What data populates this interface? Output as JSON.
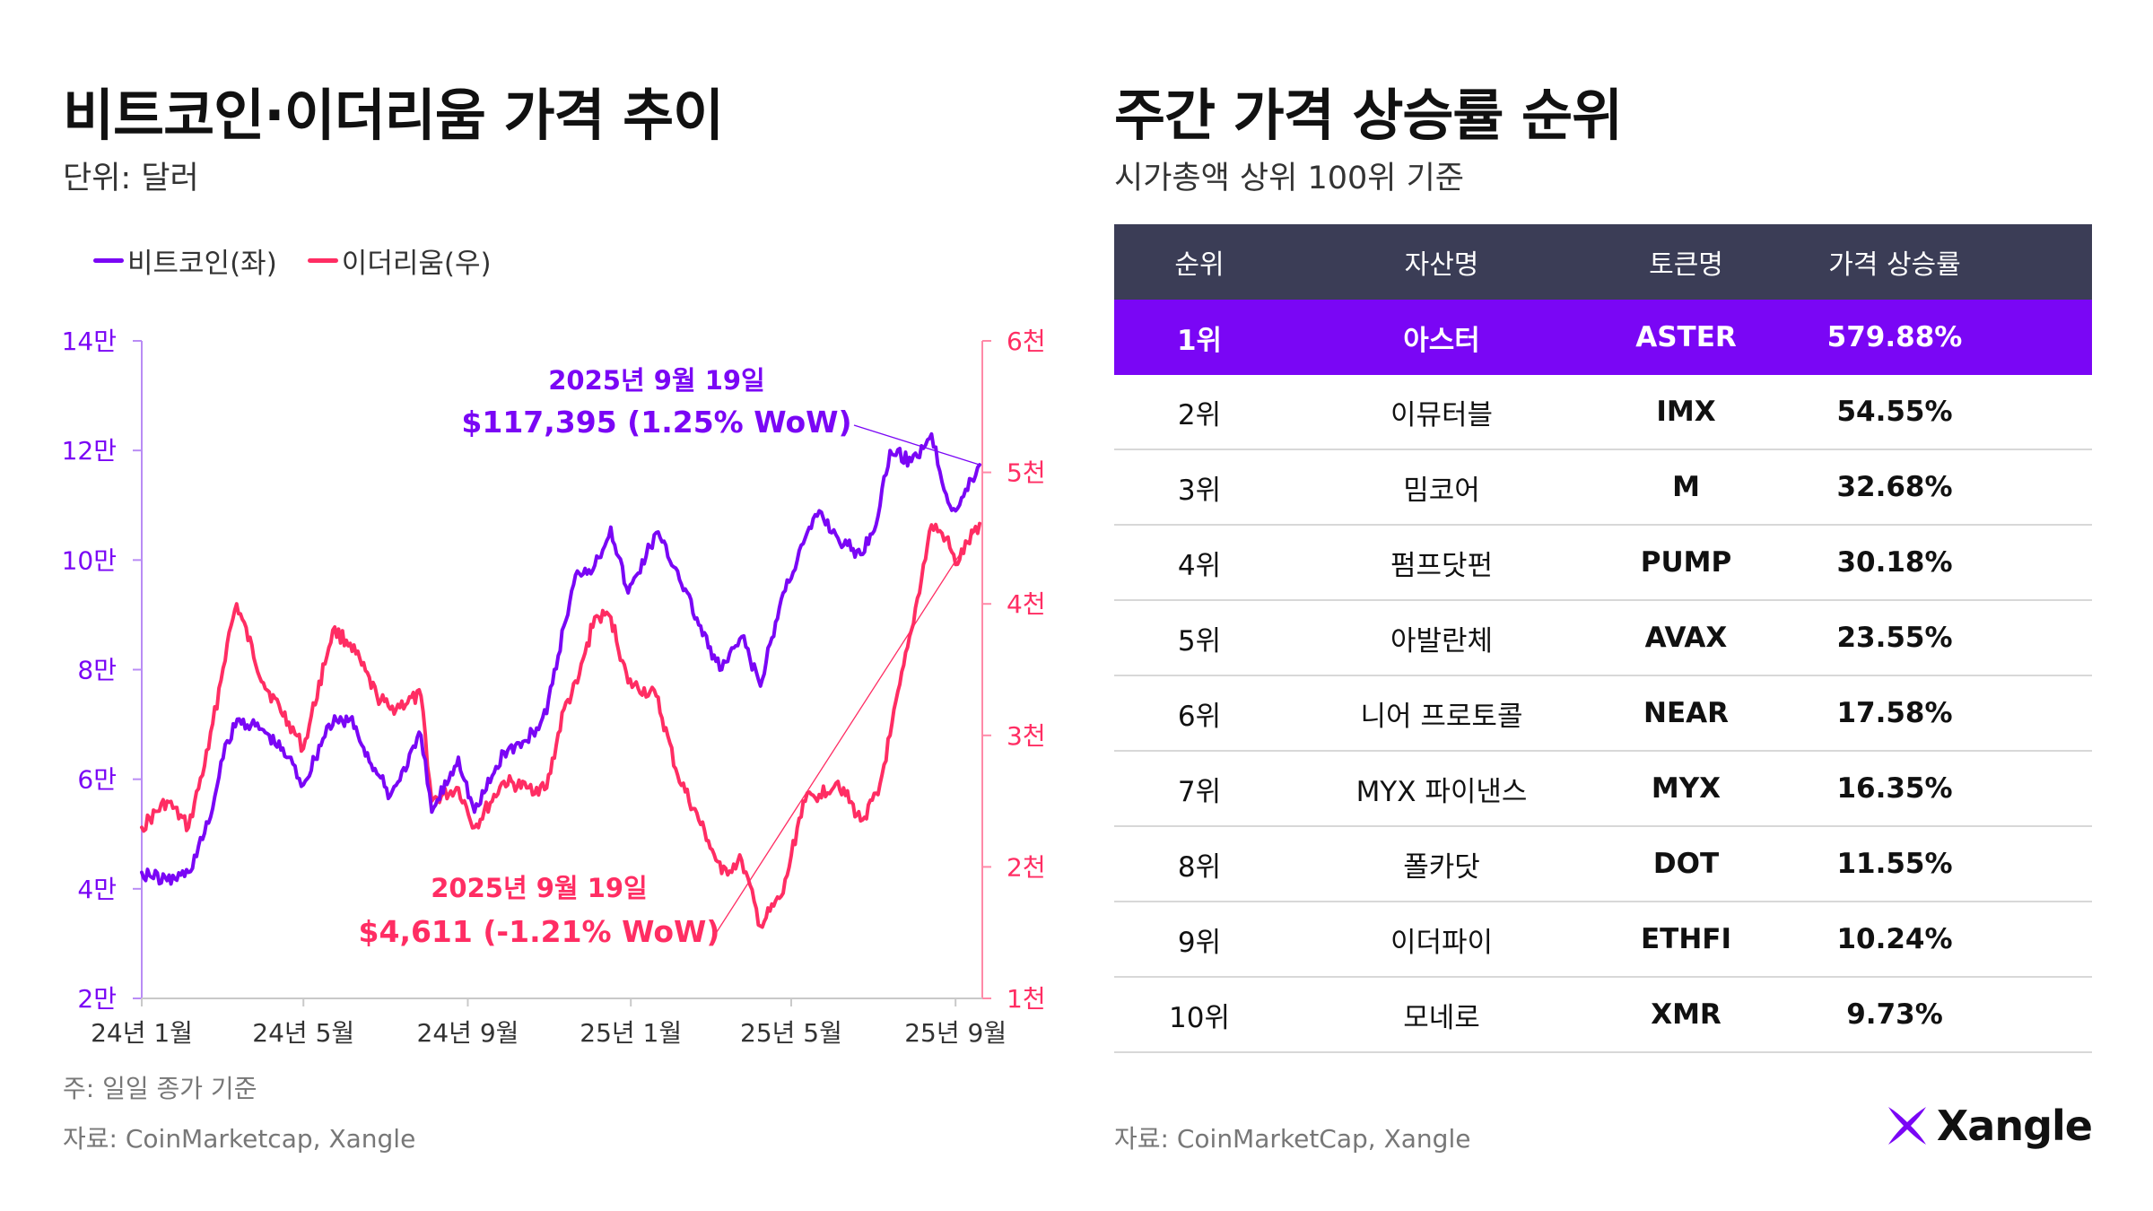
{
  "left": {
    "title": "비트코인·이더리움 가격 추이",
    "unit": "단위: 달러",
    "legend": [
      {
        "label": "비트코인(좌)",
        "color": "#7a06f5"
      },
      {
        "label": "이더리움(우)",
        "color": "#ff2d63"
      }
    ],
    "note": "주: 일일 종가 기준",
    "source": "자료: CoinMarketcap, Xangle"
  },
  "right": {
    "title": "주간 가격 상승률 순위",
    "subtitle": "시가총액 상위 100위 기준",
    "columns": [
      "순위",
      "자산명",
      "토큰명",
      "가격 상승률"
    ],
    "rows": [
      [
        "1위",
        "아스터",
        "ASTER",
        "579.88%"
      ],
      [
        "2위",
        "이뮤터블",
        "IMX",
        "54.55%"
      ],
      [
        "3위",
        "밈코어",
        "M",
        "32.68%"
      ],
      [
        "4위",
        "펌프닷펀",
        "PUMP",
        "30.18%"
      ],
      [
        "5위",
        "아발란체",
        "AVAX",
        "23.55%"
      ],
      [
        "6위",
        "니어 프로토콜",
        "NEAR",
        "17.58%"
      ],
      [
        "7위",
        "MYX 파이낸스",
        "MYX",
        "16.35%"
      ],
      [
        "8위",
        "폴카닷",
        "DOT",
        "11.55%"
      ],
      [
        "9위",
        "이더파이",
        "ETHFI",
        "10.24%"
      ],
      [
        "10위",
        "모네로",
        "XMR",
        "9.73%"
      ]
    ],
    "source": "자료: CoinMarketCap, Xangle"
  },
  "logo": {
    "text": "Xangle",
    "icon": "xangle-x-icon"
  },
  "colors": {
    "btc": "#7a06f5",
    "eth": "#ff2d63",
    "header": "#3b3d56",
    "highlight": "#7a06f5"
  },
  "chart_data": {
    "type": "line",
    "x_ticks": [
      "24년 1월",
      "24년 5월",
      "24년 9월",
      "25년 1월",
      "25년 5월",
      "25년 9월"
    ],
    "y_left": {
      "range": [
        20000,
        140000
      ],
      "ticks": [
        "2만",
        "4만",
        "6만",
        "8만",
        "10만",
        "12만",
        "14만"
      ]
    },
    "y_right": {
      "range": [
        1000,
        6000
      ],
      "ticks": [
        "1천",
        "2천",
        "3천",
        "4천",
        "5천",
        "6천"
      ]
    },
    "series": [
      {
        "name": "비트코인(좌)",
        "axis": "left",
        "x": [
          "2024-01-01",
          "2024-01-20",
          "2024-02-05",
          "2024-02-20",
          "2024-03-05",
          "2024-03-14",
          "2024-04-01",
          "2024-04-20",
          "2024-05-01",
          "2024-05-20",
          "2024-06-05",
          "2024-06-25",
          "2024-07-05",
          "2024-07-28",
          "2024-08-05",
          "2024-08-25",
          "2024-09-06",
          "2024-09-28",
          "2024-10-15",
          "2024-10-30",
          "2024-11-12",
          "2024-11-22",
          "2024-12-05",
          "2024-12-17",
          "2024-12-30",
          "2025-01-20",
          "2025-02-05",
          "2025-02-28",
          "2025-03-10",
          "2025-03-25",
          "2025-04-08",
          "2025-04-25",
          "2025-05-10",
          "2025-05-22",
          "2025-06-05",
          "2025-06-22",
          "2025-07-05",
          "2025-07-14",
          "2025-07-30",
          "2025-08-14",
          "2025-08-25",
          "2025-09-01",
          "2025-09-19"
        ],
        "values": [
          43000,
          41500,
          43000,
          52000,
          67000,
          71000,
          69000,
          64000,
          59000,
          70000,
          71000,
          61000,
          57000,
          68000,
          54000,
          64000,
          54000,
          65000,
          67000,
          72000,
          88000,
          98000,
          99000,
          106000,
          94000,
          105000,
          98000,
          84000,
          80000,
          86000,
          77000,
          94000,
          103000,
          109000,
          104000,
          101000,
          108000,
          120000,
          118000,
          123000,
          112000,
          109000,
          117395
        ]
      },
      {
        "name": "이더리움(우)",
        "axis": "right",
        "x": [
          "2024-01-01",
          "2024-01-20",
          "2024-02-05",
          "2024-02-20",
          "2024-03-05",
          "2024-03-12",
          "2024-04-01",
          "2024-04-20",
          "2024-05-01",
          "2024-05-23",
          "2024-06-05",
          "2024-06-25",
          "2024-07-05",
          "2024-07-28",
          "2024-08-05",
          "2024-08-25",
          "2024-09-06",
          "2024-09-28",
          "2024-10-15",
          "2024-10-30",
          "2024-11-12",
          "2024-11-22",
          "2024-12-05",
          "2024-12-17",
          "2024-12-30",
          "2025-01-20",
          "2025-02-05",
          "2025-02-28",
          "2025-03-10",
          "2025-03-25",
          "2025-04-08",
          "2025-04-25",
          "2025-05-10",
          "2025-05-22",
          "2025-06-05",
          "2025-06-22",
          "2025-07-05",
          "2025-07-14",
          "2025-07-30",
          "2025-08-14",
          "2025-08-25",
          "2025-09-01",
          "2025-09-19"
        ],
        "values": [
          2300,
          2500,
          2300,
          2900,
          3700,
          4000,
          3400,
          3100,
          2900,
          3800,
          3700,
          3300,
          3200,
          3300,
          2500,
          2600,
          2300,
          2650,
          2600,
          2600,
          3200,
          3400,
          3900,
          3900,
          3400,
          3300,
          2700,
          2200,
          1950,
          2050,
          1550,
          1800,
          2500,
          2550,
          2650,
          2350,
          2550,
          3000,
          3800,
          4600,
          4500,
          4300,
          4611
        ]
      }
    ],
    "annotations": [
      {
        "series": "비트코인(좌)",
        "date_label": "2025년 9월 19일",
        "value_label": "$117,395 (1.25% WoW)"
      },
      {
        "series": "이더리움(우)",
        "date_label": "2025년 9월 19일",
        "value_label": "$4,611 (-1.21% WoW)"
      }
    ]
  }
}
